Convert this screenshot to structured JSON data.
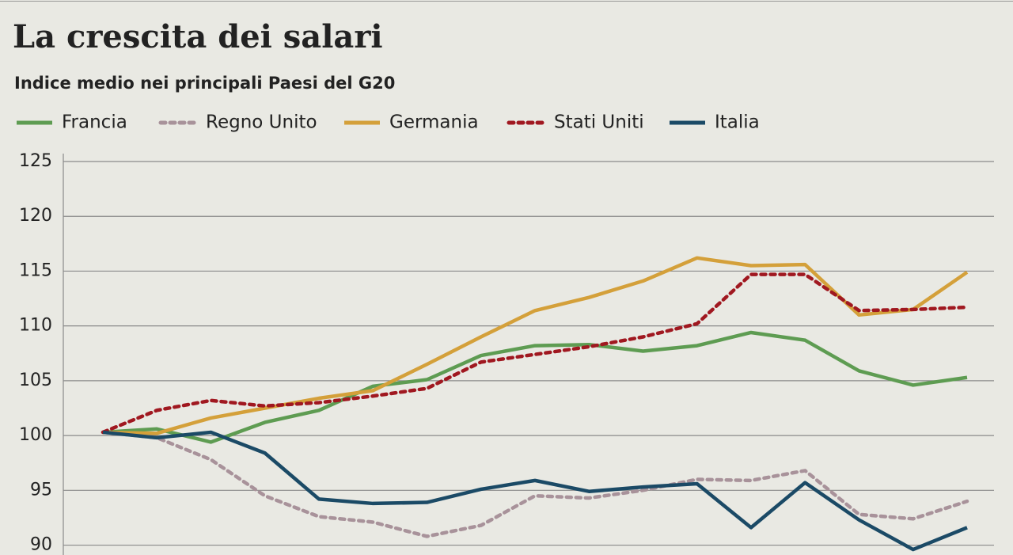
{
  "chart_data": {
    "type": "line",
    "title": "La crescita dei salari",
    "subtitle": "Indice medio nei principali Paesi del G20",
    "categories": [
      null,
      null,
      null,
      null,
      null,
      null,
      null,
      null,
      null,
      null,
      null,
      null,
      null,
      null,
      null,
      null,
      null
    ],
    "series": [
      {
        "name": "Francia",
        "color": "#5e9c52",
        "dashed": false,
        "values": [
          100.3,
          100.6,
          99.4,
          101.2,
          102.3,
          104.5,
          105.1,
          107.3,
          108.2,
          108.3,
          107.7,
          108.2,
          109.4,
          108.7,
          105.9,
          104.6,
          105.3
        ]
      },
      {
        "name": "Regno Unito",
        "color": "#a8929a",
        "dashed": true,
        "values": [
          100.3,
          99.8,
          97.8,
          94.5,
          92.6,
          92.1,
          90.8,
          91.8,
          94.5,
          94.3,
          95.0,
          96.0,
          95.9,
          96.8,
          92.8,
          92.4,
          94.0
        ]
      },
      {
        "name": "Germania",
        "color": "#d4a03a",
        "dashed": false,
        "values": [
          100.3,
          100.2,
          101.6,
          102.5,
          103.4,
          104.1,
          106.5,
          109.0,
          111.4,
          112.6,
          114.1,
          116.2,
          115.5,
          115.6,
          111.0,
          111.5,
          114.9
        ]
      },
      {
        "name": "Stati Uniti",
        "color": "#a01820",
        "dashed": true,
        "values": [
          100.3,
          102.3,
          103.2,
          102.7,
          103.0,
          103.6,
          104.3,
          106.7,
          107.4,
          108.1,
          109.0,
          110.2,
          114.7,
          114.7,
          111.4,
          111.5,
          111.7
        ]
      },
      {
        "name": "Italia",
        "color": "#1b4a66",
        "dashed": false,
        "values": [
          100.3,
          99.8,
          100.3,
          98.4,
          94.2,
          93.8,
          93.9,
          95.1,
          95.9,
          94.9,
          95.3,
          95.6,
          91.6,
          95.7,
          92.3,
          89.6,
          91.6
        ]
      }
    ],
    "ylim": [
      89.1,
      125
    ],
    "yticks": [
      90,
      95,
      100,
      105,
      110,
      115,
      120,
      125
    ],
    "grid": true
  }
}
